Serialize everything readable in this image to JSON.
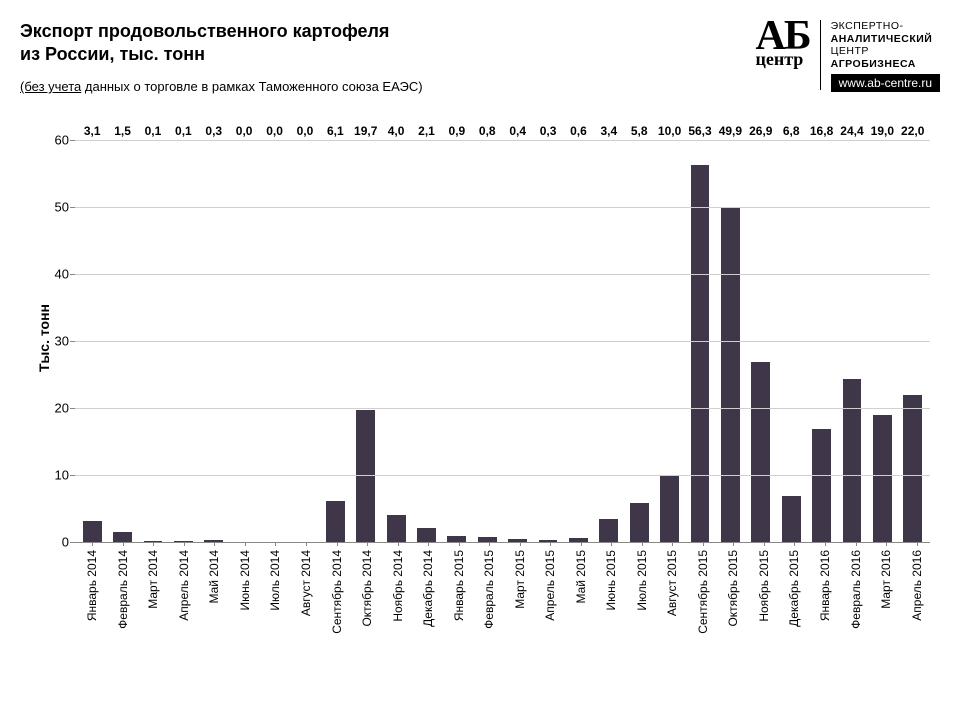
{
  "title_line1": "Экспорт продовольственного картофеля",
  "title_line2": "из России, тыс. тонн",
  "subtitle_ul": "(без учета",
  "subtitle_rest": " данных о торговле в рамках Таможенного союза ЕАЭС)",
  "logo_ab": "АБ",
  "logo_centre": "центр",
  "logo_text_l1": "ЭКСПЕРТНО-",
  "logo_text_l2": "АНАЛИТИЧЕСКИЙ",
  "logo_text_l3": "ЦЕНТР",
  "logo_text_l4": "АГРОБИЗНЕСА",
  "logo_url": "www.ab-centre.ru",
  "chart": {
    "type": "bar",
    "ylabel": "Тыс. тонн",
    "ylim": [
      0,
      60
    ],
    "ytick_step": 10,
    "yticks": [
      0,
      10,
      20,
      30,
      40,
      50,
      60
    ],
    "bar_color": "#3f3749",
    "grid_color": "#cfcfcf",
    "background_color": "#ffffff",
    "label_fontsize": 12,
    "value_fontsize": 12,
    "value_fontweight": "bold",
    "categories": [
      "Январь 2014",
      "Февраль 2014",
      "Март 2014",
      "Апрель 2014",
      "Май 2014",
      "Июнь 2014",
      "Июль 2014",
      "Август 2014",
      "Сентябрь 2014",
      "Октябрь 2014",
      "Ноябрь 2014",
      "Декабрь 2014",
      "Январь 2015",
      "Февраль 2015",
      "Март 2015",
      "Апрель 2015",
      "Май 2015",
      "Июнь 2015",
      "Июль 2015",
      "Август 2015",
      "Сентябрь 2015",
      "Октябрь 2015",
      "Ноябрь 2015",
      "Декабрь 2015",
      "Январь 2016",
      "Февраль 2016",
      "Март 2016",
      "Апрель 2016"
    ],
    "values": [
      3.1,
      1.5,
      0.1,
      0.1,
      0.3,
      0.0,
      0.0,
      0.0,
      6.1,
      19.7,
      4.0,
      2.1,
      0.9,
      0.8,
      0.4,
      0.3,
      0.6,
      3.4,
      5.8,
      10.0,
      56.3,
      49.9,
      26.9,
      6.8,
      16.8,
      24.4,
      19.0,
      22.0
    ],
    "value_labels": [
      "3,1",
      "1,5",
      "0,1",
      "0,1",
      "0,3",
      "0,0",
      "0,0",
      "0,0",
      "6,1",
      "19,7",
      "4,0",
      "2,1",
      "0,9",
      "0,8",
      "0,4",
      "0,3",
      "0,6",
      "3,4",
      "5,8",
      "10,0",
      "56,3",
      "49,9",
      "26,9",
      "6,8",
      "16,8",
      "24,4",
      "19,0",
      "22,0"
    ]
  }
}
